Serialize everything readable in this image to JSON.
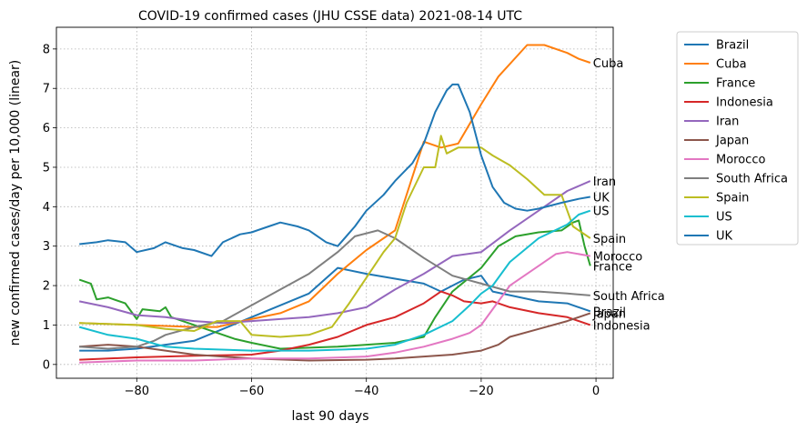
{
  "chart_data": {
    "type": "line",
    "title": "COVID-19 confirmed cases (JHU CSSE data) 2021-08-14 UTC",
    "xlabel": "last 90 days",
    "ylabel": "new confirmed cases/day per 10,000 (linear)",
    "xlim": [
      -94,
      3
    ],
    "ylim": [
      -0.35,
      8.55
    ],
    "xticks": [
      -80,
      -60,
      -40,
      -20,
      0
    ],
    "yticks": [
      0,
      1,
      2,
      3,
      4,
      5,
      6,
      7,
      8
    ],
    "xtick_labels": [
      "−80",
      "−60",
      "−40",
      "−20",
      "0"
    ],
    "ytick_labels": [
      "0",
      "1",
      "2",
      "3",
      "4",
      "5",
      "6",
      "7",
      "8"
    ],
    "grid": true,
    "legend_position": "outside-right",
    "series": [
      {
        "name": "Brazil",
        "color": "#1f77b4",
        "end_label": "Brazil",
        "points": [
          [
            -90,
            0.35
          ],
          [
            -85,
            0.35
          ],
          [
            -80,
            0.4
          ],
          [
            -70,
            0.6
          ],
          [
            -60,
            1.2
          ],
          [
            -50,
            1.8
          ],
          [
            -45,
            2.45
          ],
          [
            -40,
            2.3
          ],
          [
            -30,
            2.05
          ],
          [
            -27,
            1.85
          ],
          [
            -23,
            2.15
          ],
          [
            -20,
            2.25
          ],
          [
            -18,
            1.85
          ],
          [
            -10,
            1.6
          ],
          [
            -5,
            1.55
          ],
          [
            -1,
            1.35
          ]
        ]
      },
      {
        "name": "Cuba",
        "color": "#ff7f0e",
        "end_label": "Cuba",
        "points": [
          [
            -90,
            1.05
          ],
          [
            -80,
            1.0
          ],
          [
            -70,
            0.95
          ],
          [
            -66,
            0.95
          ],
          [
            -60,
            1.15
          ],
          [
            -55,
            1.3
          ],
          [
            -50,
            1.6
          ],
          [
            -45,
            2.3
          ],
          [
            -40,
            2.9
          ],
          [
            -35,
            3.4
          ],
          [
            -30,
            5.65
          ],
          [
            -27,
            5.5
          ],
          [
            -24,
            5.6
          ],
          [
            -20,
            6.6
          ],
          [
            -17,
            7.3
          ],
          [
            -12,
            8.1
          ],
          [
            -9,
            8.1
          ],
          [
            -5,
            7.9
          ],
          [
            -3,
            7.75
          ],
          [
            -1,
            7.65
          ]
        ]
      },
      {
        "name": "France",
        "color": "#2ca02c",
        "end_label": "France",
        "points": [
          [
            -90,
            2.15
          ],
          [
            -88,
            2.05
          ],
          [
            -87,
            1.65
          ],
          [
            -85,
            1.7
          ],
          [
            -82,
            1.55
          ],
          [
            -80,
            1.15
          ],
          [
            -79,
            1.4
          ],
          [
            -76,
            1.35
          ],
          [
            -75,
            1.45
          ],
          [
            -74,
            1.2
          ],
          [
            -70,
            1.0
          ],
          [
            -66,
            0.8
          ],
          [
            -63,
            0.65
          ],
          [
            -60,
            0.55
          ],
          [
            -55,
            0.4
          ],
          [
            -45,
            0.45
          ],
          [
            -35,
            0.55
          ],
          [
            -30,
            0.7
          ],
          [
            -28,
            1.2
          ],
          [
            -25,
            1.85
          ],
          [
            -20,
            2.45
          ],
          [
            -17,
            3.0
          ],
          [
            -14,
            3.25
          ],
          [
            -10,
            3.35
          ],
          [
            -6,
            3.4
          ],
          [
            -4,
            3.6
          ],
          [
            -3,
            3.65
          ],
          [
            -2,
            3.0
          ],
          [
            -1,
            2.5
          ]
        ]
      },
      {
        "name": "Indonesia",
        "color": "#d62728",
        "end_label": "Indonesia",
        "points": [
          [
            -90,
            0.12
          ],
          [
            -80,
            0.18
          ],
          [
            -70,
            0.22
          ],
          [
            -60,
            0.25
          ],
          [
            -55,
            0.35
          ],
          [
            -50,
            0.5
          ],
          [
            -45,
            0.7
          ],
          [
            -40,
            1.0
          ],
          [
            -35,
            1.2
          ],
          [
            -30,
            1.55
          ],
          [
            -27,
            1.85
          ],
          [
            -25,
            1.75
          ],
          [
            -23,
            1.6
          ],
          [
            -20,
            1.55
          ],
          [
            -18,
            1.6
          ],
          [
            -15,
            1.45
          ],
          [
            -10,
            1.3
          ],
          [
            -5,
            1.2
          ],
          [
            -1,
            1.0
          ]
        ]
      },
      {
        "name": "Iran",
        "color": "#9467bd",
        "end_label": "Iran",
        "points": [
          [
            -90,
            1.6
          ],
          [
            -85,
            1.45
          ],
          [
            -80,
            1.25
          ],
          [
            -75,
            1.2
          ],
          [
            -70,
            1.1
          ],
          [
            -65,
            1.05
          ],
          [
            -60,
            1.1
          ],
          [
            -55,
            1.15
          ],
          [
            -50,
            1.2
          ],
          [
            -45,
            1.3
          ],
          [
            -40,
            1.45
          ],
          [
            -35,
            1.9
          ],
          [
            -30,
            2.3
          ],
          [
            -25,
            2.75
          ],
          [
            -20,
            2.85
          ],
          [
            -15,
            3.4
          ],
          [
            -10,
            3.9
          ],
          [
            -5,
            4.4
          ],
          [
            -1,
            4.65
          ]
        ]
      },
      {
        "name": "Japan",
        "color": "#8c564b",
        "end_label": "Japan",
        "points": [
          [
            -90,
            0.45
          ],
          [
            -85,
            0.5
          ],
          [
            -80,
            0.45
          ],
          [
            -75,
            0.35
          ],
          [
            -70,
            0.25
          ],
          [
            -60,
            0.15
          ],
          [
            -50,
            0.1
          ],
          [
            -40,
            0.12
          ],
          [
            -35,
            0.15
          ],
          [
            -30,
            0.2
          ],
          [
            -25,
            0.25
          ],
          [
            -20,
            0.35
          ],
          [
            -17,
            0.5
          ],
          [
            -15,
            0.7
          ],
          [
            -10,
            0.9
          ],
          [
            -5,
            1.1
          ],
          [
            -1,
            1.3
          ]
        ]
      },
      {
        "name": "Morocco",
        "color": "#e377c2",
        "end_label": "Morocco",
        "points": [
          [
            -90,
            0.05
          ],
          [
            -80,
            0.1
          ],
          [
            -70,
            0.1
          ],
          [
            -60,
            0.15
          ],
          [
            -50,
            0.15
          ],
          [
            -40,
            0.2
          ],
          [
            -35,
            0.3
          ],
          [
            -30,
            0.45
          ],
          [
            -25,
            0.65
          ],
          [
            -22,
            0.8
          ],
          [
            -20,
            1.0
          ],
          [
            -18,
            1.4
          ],
          [
            -15,
            2.0
          ],
          [
            -10,
            2.5
          ],
          [
            -7,
            2.8
          ],
          [
            -5,
            2.85
          ],
          [
            -1,
            2.75
          ]
        ]
      },
      {
        "name": "South Africa",
        "color": "#7f7f7f",
        "end_label": "South Africa",
        "points": [
          [
            -90,
            0.45
          ],
          [
            -85,
            0.4
          ],
          [
            -80,
            0.45
          ],
          [
            -77,
            0.6
          ],
          [
            -75,
            0.75
          ],
          [
            -70,
            0.95
          ],
          [
            -65,
            1.1
          ],
          [
            -60,
            1.5
          ],
          [
            -55,
            1.9
          ],
          [
            -50,
            2.3
          ],
          [
            -45,
            2.85
          ],
          [
            -42,
            3.25
          ],
          [
            -38,
            3.4
          ],
          [
            -35,
            3.2
          ],
          [
            -30,
            2.7
          ],
          [
            -25,
            2.25
          ],
          [
            -20,
            2.05
          ],
          [
            -15,
            1.85
          ],
          [
            -10,
            1.85
          ],
          [
            -5,
            1.8
          ],
          [
            -1,
            1.75
          ]
        ]
      },
      {
        "name": "Spain",
        "color": "#bcbd22",
        "end_label": "Spain",
        "points": [
          [
            -90,
            1.05
          ],
          [
            -80,
            1.0
          ],
          [
            -75,
            0.9
          ],
          [
            -70,
            0.85
          ],
          [
            -66,
            1.1
          ],
          [
            -62,
            1.1
          ],
          [
            -60,
            0.75
          ],
          [
            -55,
            0.7
          ],
          [
            -50,
            0.75
          ],
          [
            -46,
            0.95
          ],
          [
            -43,
            1.55
          ],
          [
            -40,
            2.2
          ],
          [
            -37,
            2.85
          ],
          [
            -35,
            3.2
          ],
          [
            -33,
            4.1
          ],
          [
            -30,
            5.0
          ],
          [
            -28,
            5.0
          ],
          [
            -27,
            5.8
          ],
          [
            -26,
            5.35
          ],
          [
            -24,
            5.5
          ],
          [
            -20,
            5.5
          ],
          [
            -18,
            5.3
          ],
          [
            -15,
            5.05
          ],
          [
            -12,
            4.7
          ],
          [
            -9,
            4.3
          ],
          [
            -6,
            4.3
          ],
          [
            -4,
            3.5
          ],
          [
            -1,
            3.2
          ]
        ]
      },
      {
        "name": "US",
        "color": "#17becf",
        "end_label": "US",
        "points": [
          [
            -90,
            0.95
          ],
          [
            -85,
            0.75
          ],
          [
            -80,
            0.65
          ],
          [
            -75,
            0.45
          ],
          [
            -70,
            0.4
          ],
          [
            -60,
            0.35
          ],
          [
            -50,
            0.35
          ],
          [
            -40,
            0.4
          ],
          [
            -35,
            0.5
          ],
          [
            -30,
            0.75
          ],
          [
            -25,
            1.1
          ],
          [
            -22,
            1.5
          ],
          [
            -20,
            1.8
          ],
          [
            -18,
            2.0
          ],
          [
            -15,
            2.6
          ],
          [
            -10,
            3.2
          ],
          [
            -5,
            3.55
          ],
          [
            -3,
            3.8
          ],
          [
            -1,
            3.9
          ]
        ]
      },
      {
        "name": "UK",
        "color": "#1f77b4",
        "end_label": "UK",
        "points": [
          [
            -90,
            3.05
          ],
          [
            -87,
            3.1
          ],
          [
            -85,
            3.15
          ],
          [
            -82,
            3.1
          ],
          [
            -80,
            2.85
          ],
          [
            -77,
            2.95
          ],
          [
            -75,
            3.1
          ],
          [
            -72,
            2.95
          ],
          [
            -70,
            2.9
          ],
          [
            -67,
            2.75
          ],
          [
            -65,
            3.1
          ],
          [
            -62,
            3.3
          ],
          [
            -60,
            3.35
          ],
          [
            -57,
            3.5
          ],
          [
            -55,
            3.6
          ],
          [
            -52,
            3.5
          ],
          [
            -50,
            3.4
          ],
          [
            -47,
            3.1
          ],
          [
            -45,
            3.0
          ],
          [
            -42,
            3.5
          ],
          [
            -40,
            3.9
          ],
          [
            -37,
            4.3
          ],
          [
            -35,
            4.65
          ],
          [
            -32,
            5.1
          ],
          [
            -30,
            5.6
          ],
          [
            -28,
            6.4
          ],
          [
            -26,
            6.95
          ],
          [
            -25,
            7.1
          ],
          [
            -24,
            7.1
          ],
          [
            -22,
            6.4
          ],
          [
            -20,
            5.3
          ],
          [
            -18,
            4.5
          ],
          [
            -16,
            4.1
          ],
          [
            -14,
            3.95
          ],
          [
            -12,
            3.9
          ],
          [
            -10,
            3.95
          ],
          [
            -6,
            4.1
          ],
          [
            -3,
            4.2
          ],
          [
            -1,
            4.25
          ]
        ]
      }
    ]
  }
}
